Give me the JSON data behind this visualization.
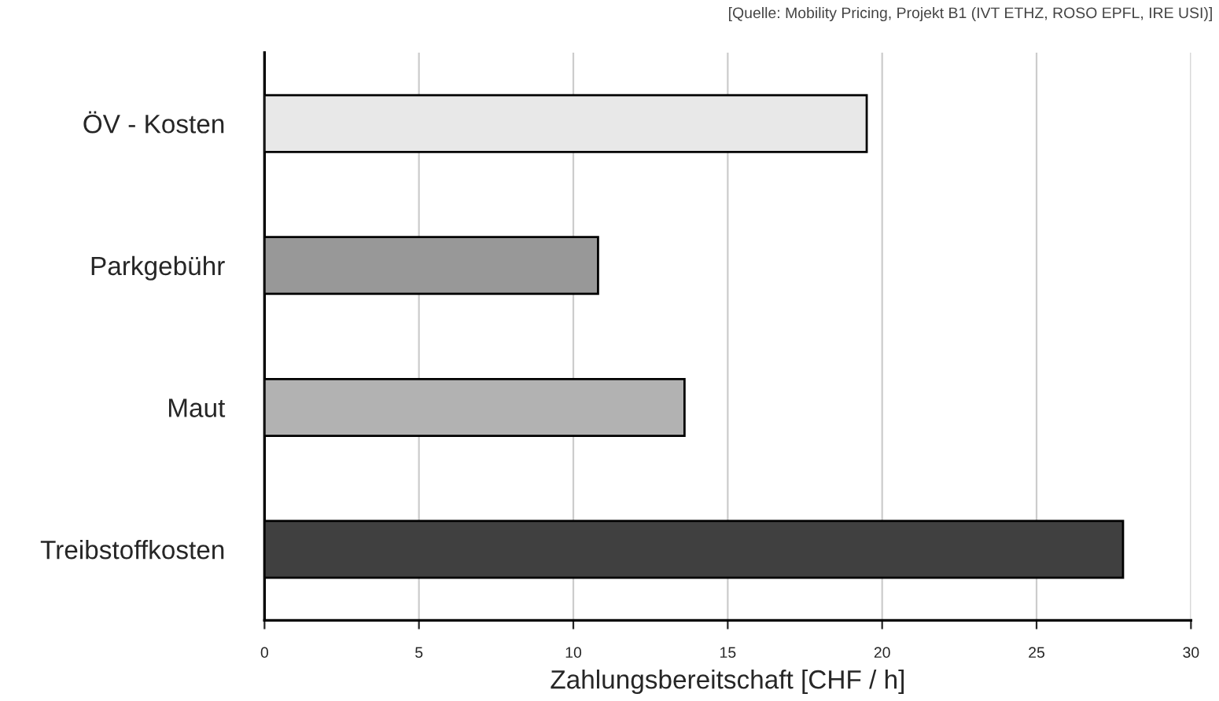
{
  "chart_data": {
    "type": "bar",
    "orientation": "horizontal",
    "xlabel": "Zahlungsbereitschaft [CHF / h]",
    "categories": [
      "ÖV - Kosten",
      "Parkgebühr",
      "Maut",
      "Treibstoffkosten"
    ],
    "values": [
      19.5,
      10.8,
      13.6,
      27.8
    ],
    "colors": [
      "#e8e8e8",
      "#989898",
      "#b2b2b2",
      "#404040"
    ],
    "xlim": [
      0,
      30
    ],
    "xticks": [
      0,
      5,
      10,
      15,
      20,
      25,
      30
    ],
    "grid": "x",
    "annotations": [
      "[Quelle: Mobility Pricing, Projekt B1 (IVT ETHZ, ROSO EPFL, IRE USI)]"
    ]
  }
}
